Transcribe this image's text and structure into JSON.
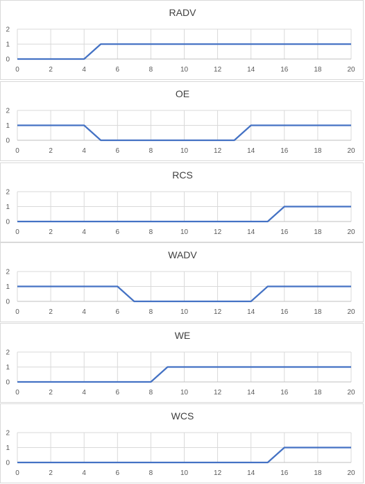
{
  "chart_data": [
    {
      "type": "line",
      "title": "RADV",
      "x": [
        0,
        1,
        2,
        3,
        4,
        5,
        6,
        7,
        8,
        9,
        10,
        11,
        12,
        13,
        14,
        15,
        16,
        17,
        18,
        19,
        20
      ],
      "series": [
        {
          "values": [
            0,
            0,
            0,
            0,
            0,
            1,
            1,
            1,
            1,
            1,
            1,
            1,
            1,
            1,
            1,
            1,
            1,
            1,
            1,
            1,
            1
          ]
        }
      ],
      "xticks": [
        0,
        2,
        4,
        6,
        8,
        10,
        12,
        14,
        16,
        18,
        20
      ],
      "yticks": [
        0,
        1,
        2
      ],
      "xlim": [
        0,
        20
      ],
      "ylim": [
        0,
        2
      ],
      "grid": true,
      "color": "#4472c4"
    },
    {
      "type": "line",
      "title": "OE",
      "x": [
        0,
        1,
        2,
        3,
        4,
        5,
        6,
        7,
        8,
        9,
        10,
        11,
        12,
        13,
        14,
        15,
        16,
        17,
        18,
        19,
        20
      ],
      "series": [
        {
          "values": [
            1,
            1,
            1,
            1,
            1,
            0,
            0,
            0,
            0,
            0,
            0,
            0,
            0,
            0,
            1,
            1,
            1,
            1,
            1,
            1,
            1
          ]
        }
      ],
      "xticks": [
        0,
        2,
        4,
        6,
        8,
        10,
        12,
        14,
        16,
        18,
        20
      ],
      "yticks": [
        0,
        1,
        2
      ],
      "xlim": [
        0,
        20
      ],
      "ylim": [
        0,
        2
      ],
      "grid": true,
      "color": "#4472c4"
    },
    {
      "type": "line",
      "title": "RCS",
      "x": [
        0,
        1,
        2,
        3,
        4,
        5,
        6,
        7,
        8,
        9,
        10,
        11,
        12,
        13,
        14,
        15,
        16,
        17,
        18,
        19,
        20
      ],
      "series": [
        {
          "values": [
            0,
            0,
            0,
            0,
            0,
            0,
            0,
            0,
            0,
            0,
            0,
            0,
            0,
            0,
            0,
            0,
            1,
            1,
            1,
            1,
            1
          ]
        }
      ],
      "xticks": [
        0,
        2,
        4,
        6,
        8,
        10,
        12,
        14,
        16,
        18,
        20
      ],
      "yticks": [
        0,
        1,
        2
      ],
      "xlim": [
        0,
        20
      ],
      "ylim": [
        0,
        2
      ],
      "grid": true,
      "color": "#4472c4"
    },
    {
      "type": "line",
      "title": "WADV",
      "x": [
        0,
        1,
        2,
        3,
        4,
        5,
        6,
        7,
        8,
        9,
        10,
        11,
        12,
        13,
        14,
        15,
        16,
        17,
        18,
        19,
        20
      ],
      "series": [
        {
          "values": [
            1,
            1,
            1,
            1,
            1,
            1,
            1,
            0,
            0,
            0,
            0,
            0,
            0,
            0,
            0,
            1,
            1,
            1,
            1,
            1,
            1
          ]
        }
      ],
      "xticks": [
        0,
        2,
        4,
        6,
        8,
        10,
        12,
        14,
        16,
        18,
        20
      ],
      "yticks": [
        0,
        1,
        2
      ],
      "xlim": [
        0,
        20
      ],
      "ylim": [
        0,
        2
      ],
      "grid": true,
      "color": "#4472c4"
    },
    {
      "type": "line",
      "title": "WE",
      "x": [
        0,
        1,
        2,
        3,
        4,
        5,
        6,
        7,
        8,
        9,
        10,
        11,
        12,
        13,
        14,
        15,
        16,
        17,
        18,
        19,
        20
      ],
      "series": [
        {
          "values": [
            0,
            0,
            0,
            0,
            0,
            0,
            0,
            0,
            0,
            1,
            1,
            1,
            1,
            1,
            1,
            1,
            1,
            1,
            1,
            1,
            1
          ]
        }
      ],
      "xticks": [
        0,
        2,
        4,
        6,
        8,
        10,
        12,
        14,
        16,
        18,
        20
      ],
      "yticks": [
        0,
        1,
        2
      ],
      "xlim": [
        0,
        20
      ],
      "ylim": [
        0,
        2
      ],
      "grid": true,
      "color": "#4472c4"
    },
    {
      "type": "line",
      "title": "WCS",
      "x": [
        0,
        1,
        2,
        3,
        4,
        5,
        6,
        7,
        8,
        9,
        10,
        11,
        12,
        13,
        14,
        15,
        16,
        17,
        18,
        19,
        20
      ],
      "series": [
        {
          "values": [
            0,
            0,
            0,
            0,
            0,
            0,
            0,
            0,
            0,
            0,
            0,
            0,
            0,
            0,
            0,
            0,
            1,
            1,
            1,
            1,
            1
          ]
        }
      ],
      "xticks": [
        0,
        2,
        4,
        6,
        8,
        10,
        12,
        14,
        16,
        18,
        20
      ],
      "yticks": [
        0,
        1,
        2
      ],
      "xlim": [
        0,
        20
      ],
      "ylim": [
        0,
        2
      ],
      "grid": true,
      "color": "#4472c4"
    }
  ]
}
